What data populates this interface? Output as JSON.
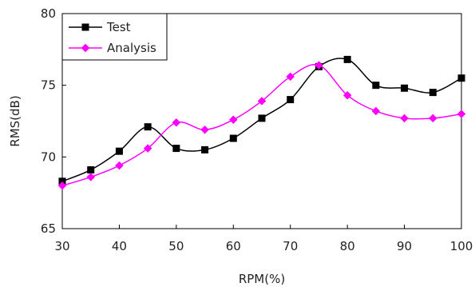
{
  "chart_data": {
    "type": "line",
    "title": "",
    "xlabel": "RPM(%)",
    "ylabel": "RMS(dB)",
    "x": [
      30,
      35,
      40,
      45,
      50,
      55,
      60,
      65,
      70,
      75,
      80,
      85,
      90,
      95,
      100
    ],
    "xlim": [
      30,
      100
    ],
    "ylim": [
      65,
      80
    ],
    "xticks": [
      30,
      40,
      50,
      60,
      70,
      80,
      90,
      100
    ],
    "yticks": [
      65,
      70,
      75,
      80
    ],
    "grid": false,
    "legend_position": "top-left",
    "series": [
      {
        "name": "Test",
        "color": "#000000",
        "marker": "square",
        "values": [
          68.3,
          69.1,
          70.4,
          72.1,
          70.6,
          70.5,
          71.3,
          72.7,
          74.0,
          76.3,
          76.8,
          75.0,
          74.8,
          74.5,
          75.5
        ]
      },
      {
        "name": "Analysis",
        "color": "#ff00ff",
        "marker": "diamond",
        "values": [
          68.0,
          68.6,
          69.4,
          70.6,
          72.4,
          71.9,
          72.6,
          73.9,
          75.6,
          76.4,
          74.3,
          73.2,
          72.7,
          72.7,
          73.0
        ]
      }
    ]
  }
}
